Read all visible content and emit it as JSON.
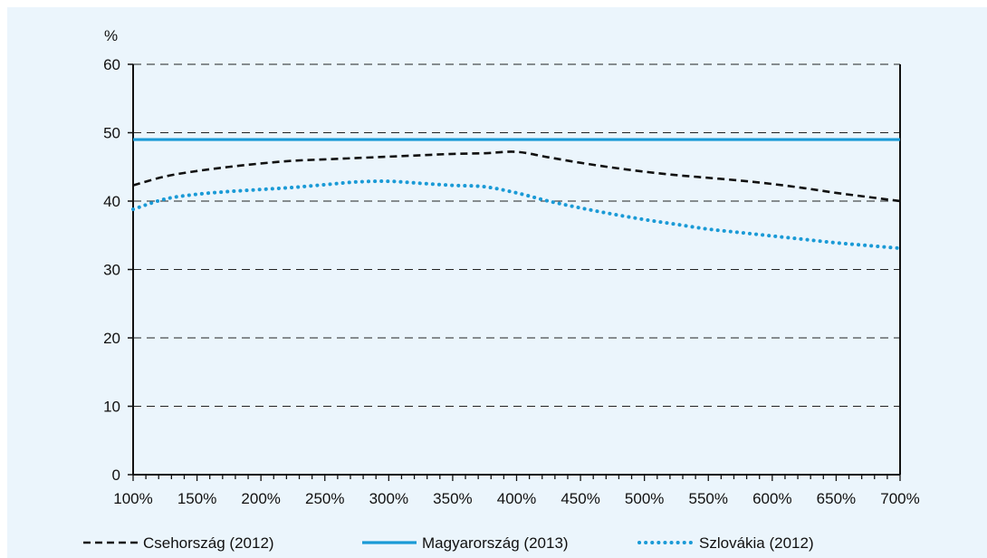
{
  "chart_data": {
    "type": "line",
    "ylabel": "%",
    "xlabel": "",
    "ylim": [
      0,
      60
    ],
    "xlim": [
      100,
      700
    ],
    "y_ticks": [
      "0",
      "10",
      "20",
      "30",
      "40",
      "50",
      "60"
    ],
    "x_ticks": [
      "100%",
      "150%",
      "200%",
      "250%",
      "300%",
      "350%",
      "400%",
      "450%",
      "500%",
      "550%",
      "600%",
      "650%",
      "700%"
    ],
    "grid": "horizontal dashed",
    "legend_position": "bottom",
    "x": [
      100,
      125,
      150,
      175,
      200,
      225,
      250,
      275,
      300,
      325,
      350,
      375,
      400,
      425,
      450,
      475,
      500,
      525,
      550,
      575,
      600,
      625,
      650,
      675,
      700
    ],
    "series": [
      {
        "name": "Csehország (2012)",
        "style": "dashed",
        "color": "#111111",
        "values": [
          42.3,
          43.6,
          44.4,
          45.0,
          45.5,
          45.9,
          46.1,
          46.3,
          46.5,
          46.7,
          46.9,
          47.0,
          47.2,
          46.4,
          45.6,
          44.9,
          44.3,
          43.8,
          43.4,
          43.0,
          42.5,
          41.9,
          41.2,
          40.6,
          40.0
        ]
      },
      {
        "name": "Magyarország (2013)",
        "style": "solid",
        "color": "#1a9ad6",
        "values": [
          49,
          49,
          49,
          49,
          49,
          49,
          49,
          49,
          49,
          49,
          49,
          49,
          49,
          49,
          49,
          49,
          49,
          49,
          49,
          49,
          49,
          49,
          49,
          49,
          49
        ]
      },
      {
        "name": "Szlovákia (2012)",
        "style": "dotted",
        "color": "#1a9ad6",
        "values": [
          38.8,
          40.3,
          41.0,
          41.4,
          41.7,
          42.0,
          42.4,
          42.8,
          42.9,
          42.6,
          42.3,
          42.1,
          41.2,
          40.0,
          39.0,
          38.1,
          37.3,
          36.6,
          35.9,
          35.4,
          34.9,
          34.4,
          33.9,
          33.5,
          33.1
        ]
      }
    ]
  }
}
